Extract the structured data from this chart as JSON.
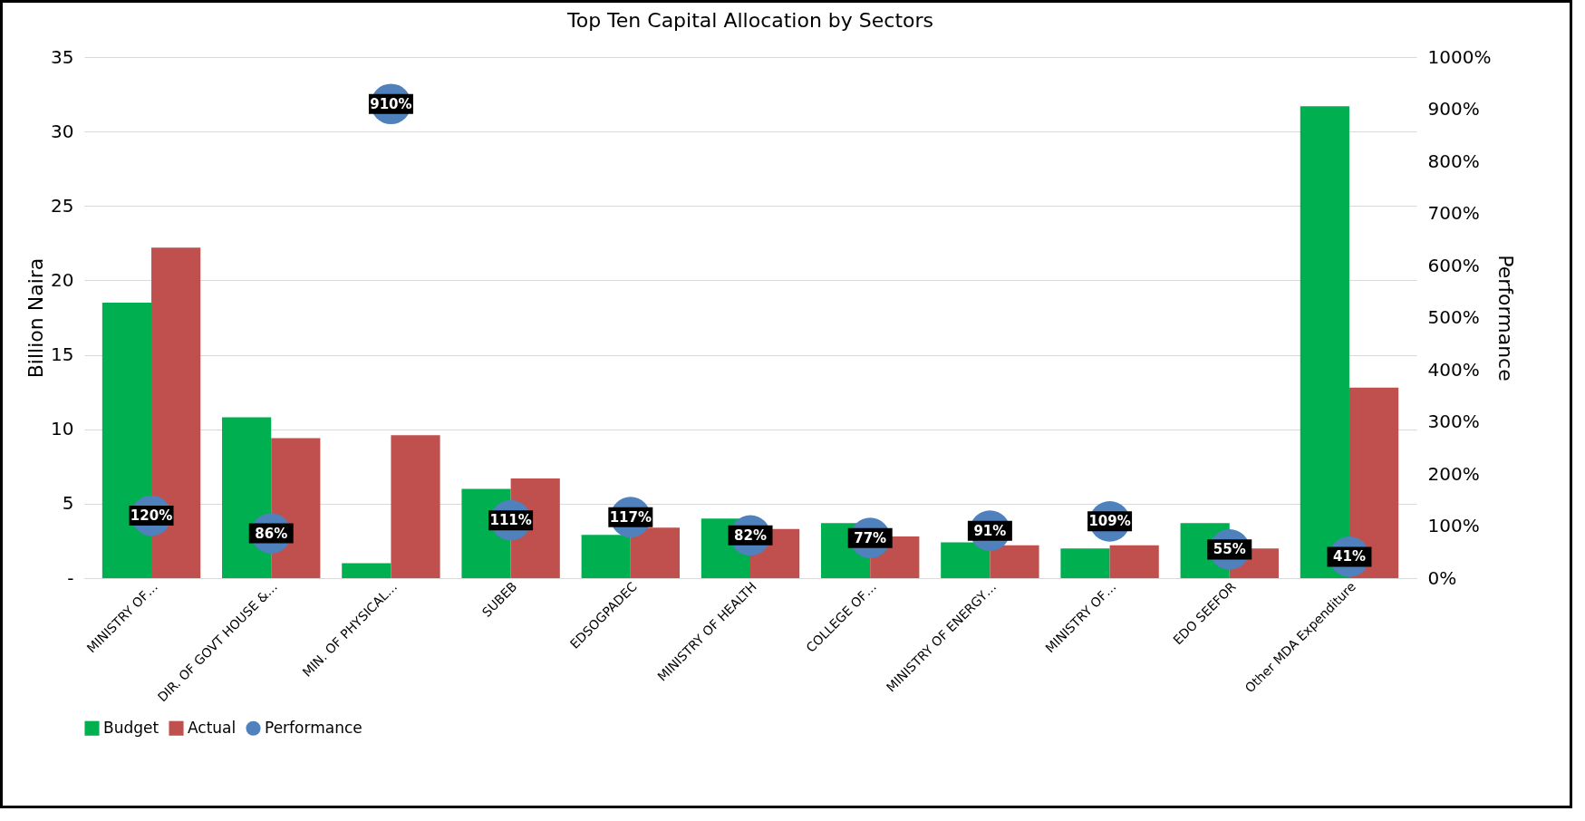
{
  "chart_data": {
    "type": "bar",
    "title": "Top Ten Capital Allocation by Sectors",
    "ylabel": "Billion Naira",
    "y2label": "Performance",
    "categories": [
      "MINISTRY OF…",
      "DIR. OF GOVT HOUSE &…",
      "MIN. OF PHYSICAL…",
      "SUBEB",
      "EDSOGPADEC",
      "MINISTRY OF HEALTH",
      "COLLEGE OF…",
      "MINISTRY OF ENERGY…",
      "MINISTRY OF…",
      "EDO SEEFOR",
      "Other MDA Expenditure"
    ],
    "series": [
      {
        "name": "Budget",
        "color": "#00b050",
        "values": [
          18.5,
          10.8,
          1.0,
          6.0,
          2.9,
          4.0,
          3.7,
          2.4,
          2.0,
          3.7,
          31.7
        ]
      },
      {
        "name": "Actual",
        "color": "#c0504d",
        "values": [
          22.2,
          9.4,
          9.6,
          6.7,
          3.4,
          3.3,
          2.8,
          2.2,
          2.2,
          2.0,
          12.8
        ]
      },
      {
        "name": "Performance",
        "type": "scatter",
        "axis": "y2",
        "color": "#4f81bd",
        "values": [
          120,
          86,
          910,
          111,
          117,
          82,
          77,
          91,
          109,
          55,
          41
        ],
        "value_labels": [
          "120%",
          "86%",
          "910%",
          "111%",
          "117%",
          "82%",
          "77%",
          "91%",
          "109%",
          "55%",
          "41%"
        ]
      }
    ],
    "ylim": [
      0,
      35
    ],
    "yticks": [
      {
        "value": 0,
        "label": "-"
      },
      5,
      10,
      15,
      20,
      25,
      30,
      35
    ],
    "y2lim": [
      0,
      1000
    ],
    "y2ticks": [
      {
        "value": 0,
        "label": "0%"
      },
      {
        "value": 100,
        "label": "100%"
      },
      {
        "value": 200,
        "label": "200%"
      },
      {
        "value": 300,
        "label": "300%"
      },
      {
        "value": 400,
        "label": "400%"
      },
      {
        "value": 500,
        "label": "500%"
      },
      {
        "value": 600,
        "label": "600%"
      },
      {
        "value": 700,
        "label": "700%"
      },
      {
        "value": 800,
        "label": "800%"
      },
      {
        "value": 900,
        "label": "900%"
      },
      {
        "value": 1000,
        "label": "1000%"
      }
    ],
    "grid": "y",
    "legend": "bottom",
    "marker": "circle"
  }
}
